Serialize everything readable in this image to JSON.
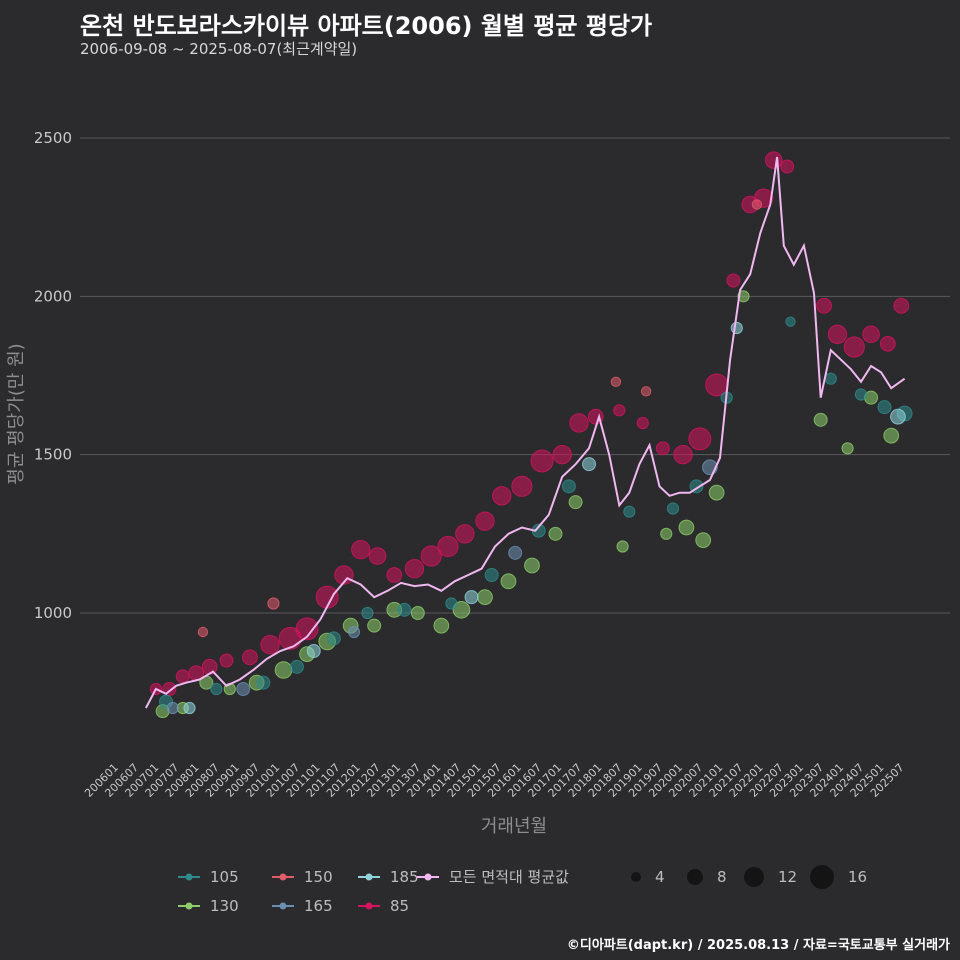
{
  "header": {
    "title": "온천 반도보라스카이뷰 아파트(2006) 월별 평균 평당가",
    "subtitle": "2006-09-08 ~ 2025-08-07(최근계약일)"
  },
  "footer": {
    "credit": "©디아파트(dapt.kr) / 2025.08.13 / 자료=국토교통부 실거래가"
  },
  "colors": {
    "background": "#2b2a2d",
    "grid": "#5a5a5d",
    "avg_line": "#f0b7f0",
    "s85": "#d6135f",
    "s105": "#2e8b8b",
    "s130": "#8ccd6a",
    "s150": "#e05b6b",
    "s165": "#6b8fb3",
    "s185": "#8fd3dd"
  },
  "chart_data": {
    "type": "scatter",
    "xlabel": "거래년월",
    "ylabel": "평균 평당가(만 원)",
    "ylim": [
      560,
      2720
    ],
    "y_ticks": [
      1000,
      1500,
      2000,
      2500
    ],
    "grid": true,
    "x_ticks": [
      "200601",
      "200607",
      "200701",
      "200707",
      "200801",
      "200807",
      "200901",
      "200907",
      "201001",
      "201007",
      "201101",
      "201107",
      "201201",
      "201207",
      "201301",
      "201307",
      "201401",
      "201407",
      "201501",
      "201507",
      "201601",
      "201607",
      "201701",
      "201707",
      "201801",
      "201807",
      "201901",
      "201907",
      "202001",
      "202007",
      "202101",
      "202107",
      "202201",
      "202207",
      "202301",
      "202307",
      "202401",
      "202407",
      "202501",
      "202507"
    ],
    "legend_series": [
      {
        "name": "105",
        "color": "#2e8b8b"
      },
      {
        "name": "150",
        "color": "#e05b6b"
      },
      {
        "name": "185",
        "color": "#8fd3dd"
      },
      {
        "name": "모든 면적대 평균값",
        "color": "#f0b7f0"
      },
      {
        "name": "130",
        "color": "#8ccd6a"
      },
      {
        "name": "165",
        "color": "#6b8fb3"
      },
      {
        "name": "85",
        "color": "#d6135f"
      }
    ],
    "size_legend": [
      4,
      8,
      12,
      16
    ],
    "avg_line": [
      {
        "x": "2006-09",
        "y": 700
      },
      {
        "x": "2006-12",
        "y": 760
      },
      {
        "x": "2007-03",
        "y": 745
      },
      {
        "x": "2007-06",
        "y": 770
      },
      {
        "x": "2007-09",
        "y": 780
      },
      {
        "x": "2008-01",
        "y": 790
      },
      {
        "x": "2008-05",
        "y": 815
      },
      {
        "x": "2008-09",
        "y": 770
      },
      {
        "x": "2009-01",
        "y": 790
      },
      {
        "x": "2009-05",
        "y": 820
      },
      {
        "x": "2009-09",
        "y": 855
      },
      {
        "x": "2010-01",
        "y": 880
      },
      {
        "x": "2010-05",
        "y": 895
      },
      {
        "x": "2010-09",
        "y": 925
      },
      {
        "x": "2011-01",
        "y": 980
      },
      {
        "x": "2011-05",
        "y": 1060
      },
      {
        "x": "2011-09",
        "y": 1110
      },
      {
        "x": "2012-01",
        "y": 1090
      },
      {
        "x": "2012-05",
        "y": 1050
      },
      {
        "x": "2012-09",
        "y": 1070
      },
      {
        "x": "2013-01",
        "y": 1095
      },
      {
        "x": "2013-05",
        "y": 1085
      },
      {
        "x": "2013-09",
        "y": 1090
      },
      {
        "x": "2014-01",
        "y": 1070
      },
      {
        "x": "2014-05",
        "y": 1100
      },
      {
        "x": "2014-09",
        "y": 1120
      },
      {
        "x": "2015-01",
        "y": 1140
      },
      {
        "x": "2015-05",
        "y": 1210
      },
      {
        "x": "2015-09",
        "y": 1250
      },
      {
        "x": "2016-01",
        "y": 1270
      },
      {
        "x": "2016-05",
        "y": 1260
      },
      {
        "x": "2016-09",
        "y": 1310
      },
      {
        "x": "2017-01",
        "y": 1430
      },
      {
        "x": "2017-05",
        "y": 1470
      },
      {
        "x": "2017-09",
        "y": 1520
      },
      {
        "x": "2017-12",
        "y": 1620
      },
      {
        "x": "2018-03",
        "y": 1500
      },
      {
        "x": "2018-06",
        "y": 1340
      },
      {
        "x": "2018-09",
        "y": 1380
      },
      {
        "x": "2018-12",
        "y": 1470
      },
      {
        "x": "2019-03",
        "y": 1530
      },
      {
        "x": "2019-06",
        "y": 1400
      },
      {
        "x": "2019-09",
        "y": 1370
      },
      {
        "x": "2019-12",
        "y": 1380
      },
      {
        "x": "2020-03",
        "y": 1380
      },
      {
        "x": "2020-06",
        "y": 1400
      },
      {
        "x": "2020-09",
        "y": 1420
      },
      {
        "x": "2020-12",
        "y": 1490
      },
      {
        "x": "2021-03",
        "y": 1800
      },
      {
        "x": "2021-06",
        "y": 2020
      },
      {
        "x": "2021-09",
        "y": 2070
      },
      {
        "x": "2021-12",
        "y": 2200
      },
      {
        "x": "2022-03",
        "y": 2290
      },
      {
        "x": "2022-05",
        "y": 2440
      },
      {
        "x": "2022-07",
        "y": 2160
      },
      {
        "x": "2022-10",
        "y": 2100
      },
      {
        "x": "2023-01",
        "y": 2160
      },
      {
        "x": "2023-04",
        "y": 2010
      },
      {
        "x": "2023-06",
        "y": 1680
      },
      {
        "x": "2023-09",
        "y": 1830
      },
      {
        "x": "2023-12",
        "y": 1800
      },
      {
        "x": "2024-03",
        "y": 1770
      },
      {
        "x": "2024-06",
        "y": 1730
      },
      {
        "x": "2024-09",
        "y": 1780
      },
      {
        "x": "2024-12",
        "y": 1760
      },
      {
        "x": "2025-03",
        "y": 1710
      },
      {
        "x": "2025-07",
        "y": 1740
      }
    ],
    "series": [
      {
        "name": "85",
        "points": [
          {
            "x": "2006-12",
            "y": 760,
            "s": 4
          },
          {
            "x": "2007-04",
            "y": 760,
            "s": 5
          },
          {
            "x": "2007-08",
            "y": 800,
            "s": 5
          },
          {
            "x": "2007-12",
            "y": 810,
            "s": 6
          },
          {
            "x": "2008-04",
            "y": 830,
            "s": 6
          },
          {
            "x": "2008-09",
            "y": 850,
            "s": 5
          },
          {
            "x": "2009-04",
            "y": 860,
            "s": 6
          },
          {
            "x": "2009-10",
            "y": 900,
            "s": 8
          },
          {
            "x": "2010-04",
            "y": 920,
            "s": 10
          },
          {
            "x": "2010-09",
            "y": 950,
            "s": 10
          },
          {
            "x": "2011-03",
            "y": 1050,
            "s": 10
          },
          {
            "x": "2011-08",
            "y": 1120,
            "s": 8
          },
          {
            "x": "2012-01",
            "y": 1200,
            "s": 8
          },
          {
            "x": "2012-06",
            "y": 1180,
            "s": 7
          },
          {
            "x": "2012-11",
            "y": 1120,
            "s": 6
          },
          {
            "x": "2013-05",
            "y": 1140,
            "s": 8
          },
          {
            "x": "2013-10",
            "y": 1180,
            "s": 9
          },
          {
            "x": "2014-03",
            "y": 1210,
            "s": 9
          },
          {
            "x": "2014-08",
            "y": 1250,
            "s": 8
          },
          {
            "x": "2015-02",
            "y": 1290,
            "s": 8
          },
          {
            "x": "2015-07",
            "y": 1370,
            "s": 8
          },
          {
            "x": "2016-01",
            "y": 1400,
            "s": 9
          },
          {
            "x": "2016-07",
            "y": 1480,
            "s": 10
          },
          {
            "x": "2017-01",
            "y": 1500,
            "s": 8
          },
          {
            "x": "2017-06",
            "y": 1600,
            "s": 8
          },
          {
            "x": "2017-11",
            "y": 1620,
            "s": 6
          },
          {
            "x": "2018-06",
            "y": 1640,
            "s": 4
          },
          {
            "x": "2019-01",
            "y": 1600,
            "s": 4
          },
          {
            "x": "2019-07",
            "y": 1520,
            "s": 5
          },
          {
            "x": "2020-01",
            "y": 1500,
            "s": 8
          },
          {
            "x": "2020-06",
            "y": 1550,
            "s": 10
          },
          {
            "x": "2020-11",
            "y": 1720,
            "s": 10
          },
          {
            "x": "2021-04",
            "y": 2050,
            "s": 5
          },
          {
            "x": "2021-09",
            "y": 2290,
            "s": 7
          },
          {
            "x": "2022-01",
            "y": 2310,
            "s": 8
          },
          {
            "x": "2022-04",
            "y": 2430,
            "s": 7
          },
          {
            "x": "2022-08",
            "y": 2410,
            "s": 5
          },
          {
            "x": "2023-07",
            "y": 1970,
            "s": 6
          },
          {
            "x": "2023-11",
            "y": 1880,
            "s": 8
          },
          {
            "x": "2024-04",
            "y": 1840,
            "s": 9
          },
          {
            "x": "2024-09",
            "y": 1880,
            "s": 7
          },
          {
            "x": "2025-02",
            "y": 1850,
            "s": 6
          },
          {
            "x": "2025-06",
            "y": 1970,
            "s": 6
          }
        ]
      },
      {
        "name": "130",
        "points": [
          {
            "x": "2007-02",
            "y": 690,
            "s": 5
          },
          {
            "x": "2007-08",
            "y": 700,
            "s": 4
          },
          {
            "x": "2008-03",
            "y": 780,
            "s": 5
          },
          {
            "x": "2008-10",
            "y": 760,
            "s": 4
          },
          {
            "x": "2009-06",
            "y": 780,
            "s": 6
          },
          {
            "x": "2010-02",
            "y": 820,
            "s": 7
          },
          {
            "x": "2010-09",
            "y": 870,
            "s": 6
          },
          {
            "x": "2011-03",
            "y": 910,
            "s": 7
          },
          {
            "x": "2011-10",
            "y": 960,
            "s": 6
          },
          {
            "x": "2012-05",
            "y": 960,
            "s": 5
          },
          {
            "x": "2012-11",
            "y": 1010,
            "s": 6
          },
          {
            "x": "2013-06",
            "y": 1000,
            "s": 5
          },
          {
            "x": "2014-01",
            "y": 960,
            "s": 6
          },
          {
            "x": "2014-07",
            "y": 1010,
            "s": 7
          },
          {
            "x": "2015-02",
            "y": 1050,
            "s": 6
          },
          {
            "x": "2015-09",
            "y": 1100,
            "s": 6
          },
          {
            "x": "2016-04",
            "y": 1150,
            "s": 6
          },
          {
            "x": "2016-11",
            "y": 1250,
            "s": 5
          },
          {
            "x": "2017-05",
            "y": 1350,
            "s": 5
          },
          {
            "x": "2018-07",
            "y": 1210,
            "s": 4
          },
          {
            "x": "2019-08",
            "y": 1250,
            "s": 4
          },
          {
            "x": "2020-02",
            "y": 1270,
            "s": 6
          },
          {
            "x": "2020-07",
            "y": 1230,
            "s": 6
          },
          {
            "x": "2020-11",
            "y": 1380,
            "s": 6
          },
          {
            "x": "2021-07",
            "y": 2000,
            "s": 4
          },
          {
            "x": "2023-06",
            "y": 1610,
            "s": 5
          },
          {
            "x": "2024-02",
            "y": 1520,
            "s": 4
          },
          {
            "x": "2024-09",
            "y": 1680,
            "s": 5
          },
          {
            "x": "2025-03",
            "y": 1560,
            "s": 6
          }
        ]
      },
      {
        "name": "105",
        "points": [
          {
            "x": "2007-03",
            "y": 720,
            "s": 5
          },
          {
            "x": "2008-06",
            "y": 760,
            "s": 4
          },
          {
            "x": "2009-08",
            "y": 780,
            "s": 5
          },
          {
            "x": "2010-06",
            "y": 830,
            "s": 5
          },
          {
            "x": "2011-05",
            "y": 920,
            "s": 5
          },
          {
            "x": "2012-03",
            "y": 1000,
            "s": 4
          },
          {
            "x": "2013-02",
            "y": 1010,
            "s": 5
          },
          {
            "x": "2014-04",
            "y": 1030,
            "s": 4
          },
          {
            "x": "2015-04",
            "y": 1120,
            "s": 5
          },
          {
            "x": "2016-06",
            "y": 1260,
            "s": 5
          },
          {
            "x": "2017-03",
            "y": 1400,
            "s": 5
          },
          {
            "x": "2018-09",
            "y": 1320,
            "s": 4
          },
          {
            "x": "2019-10",
            "y": 1330,
            "s": 4
          },
          {
            "x": "2020-05",
            "y": 1400,
            "s": 5
          },
          {
            "x": "2021-02",
            "y": 1680,
            "s": 4
          },
          {
            "x": "2022-09",
            "y": 1920,
            "s": 3
          },
          {
            "x": "2023-09",
            "y": 1740,
            "s": 4
          },
          {
            "x": "2024-06",
            "y": 1690,
            "s": 4
          },
          {
            "x": "2025-01",
            "y": 1650,
            "s": 5
          },
          {
            "x": "2025-07",
            "y": 1630,
            "s": 6
          }
        ]
      },
      {
        "name": "150",
        "points": [
          {
            "x": "2008-02",
            "y": 940,
            "s": 3
          },
          {
            "x": "2009-11",
            "y": 1030,
            "s": 4
          },
          {
            "x": "2018-05",
            "y": 1730,
            "s": 3
          },
          {
            "x": "2019-02",
            "y": 1700,
            "s": 3
          },
          {
            "x": "2021-11",
            "y": 2290,
            "s": 3
          }
        ]
      },
      {
        "name": "165",
        "points": [
          {
            "x": "2007-05",
            "y": 700,
            "s": 4
          },
          {
            "x": "2009-02",
            "y": 760,
            "s": 5
          },
          {
            "x": "2011-11",
            "y": 940,
            "s": 4
          },
          {
            "x": "2015-11",
            "y": 1190,
            "s": 5
          },
          {
            "x": "2020-09",
            "y": 1460,
            "s": 6
          }
        ]
      },
      {
        "name": "185",
        "points": [
          {
            "x": "2007-10",
            "y": 700,
            "s": 4
          },
          {
            "x": "2010-11",
            "y": 880,
            "s": 5
          },
          {
            "x": "2014-10",
            "y": 1050,
            "s": 5
          },
          {
            "x": "2017-09",
            "y": 1470,
            "s": 5
          },
          {
            "x": "2021-05",
            "y": 1900,
            "s": 4
          },
          {
            "x": "2025-05",
            "y": 1620,
            "s": 6
          }
        ]
      }
    ]
  }
}
